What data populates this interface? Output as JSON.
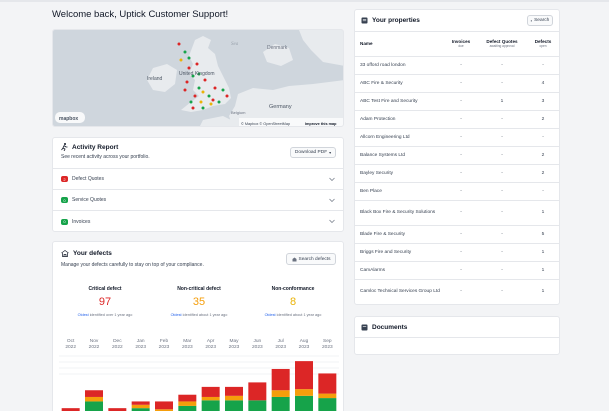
{
  "welcome": "Welcome back, Uptick Customer Support!",
  "map": {
    "labels": [
      "Sea",
      "Denmark",
      "Ireland",
      "United Kingdom",
      "Germany",
      "Belgium"
    ],
    "attribution": "© Mapbox © OpenStreetMap",
    "improve": "Improve this map",
    "logo": "mapbox",
    "zoom_in": "+",
    "zoom_out": "−"
  },
  "activity": {
    "title": "Activity Report",
    "subtitle": "See recent activity across your portfolio.",
    "download": "Download PDF",
    "items": [
      {
        "count": "2",
        "label": "Defect Quotes",
        "color": "#dc2626"
      },
      {
        "count": "0",
        "label": "Service Quotes",
        "color": "#16a34a"
      },
      {
        "count": "0",
        "label": "Invoices",
        "color": "#16a34a"
      }
    ]
  },
  "defects": {
    "title": "Your defects",
    "subtitle": "Manage your defects carefully to stay on top of your compliance.",
    "search": "Search defects",
    "stats": [
      {
        "label": "Critical defect",
        "value": "97",
        "color": "#dc2626",
        "link": "Oldest",
        "note": " identified over 1 year ago"
      },
      {
        "label": "Non-critical defect",
        "value": "35",
        "color": "#f59e0b",
        "link": "Oldest",
        "note": " identified about 1 year ago"
      },
      {
        "label": "Non-conformance",
        "value": "8",
        "color": "#eab308",
        "link": "Oldest",
        "note": " identified about 1 year ago"
      }
    ]
  },
  "chart_data": {
    "type": "bar",
    "categories": [
      [
        "Oct",
        "2022"
      ],
      [
        "Nov",
        "2022"
      ],
      [
        "Dec",
        "2022"
      ],
      [
        "Jan",
        "2023"
      ],
      [
        "Feb",
        "2023"
      ],
      [
        "Mar",
        "2023"
      ],
      [
        "Apr",
        "2023"
      ],
      [
        "May",
        "2023"
      ],
      [
        "Jun",
        "2023"
      ],
      [
        "Jul",
        "2023"
      ],
      [
        "Aug",
        "2023"
      ],
      [
        "Sep",
        "2023"
      ]
    ],
    "series": [
      {
        "color": "#16a34a",
        "values": [
          0,
          13,
          0,
          7,
          4,
          9,
          14,
          14,
          14,
          17,
          18,
          16
        ]
      },
      {
        "color": "#f59e0b",
        "values": [
          0,
          4,
          0,
          3,
          2,
          4,
          3,
          4,
          0,
          6,
          6,
          4
        ]
      },
      {
        "color": "#dc2626",
        "values": [
          7,
          6,
          7,
          3,
          7,
          6,
          9,
          8,
          16,
          19,
          25,
          18
        ]
      }
    ],
    "ylim": [
      0,
      50
    ],
    "grid": true
  },
  "properties": {
    "title": "Your properties",
    "search": "Search",
    "columns": [
      {
        "label": "Name",
        "sub": ""
      },
      {
        "label": "Invoices",
        "sub": "due"
      },
      {
        "label": "Defect Quotes",
        "sub": "awaiting approval"
      },
      {
        "label": "Defects",
        "sub": "open"
      }
    ],
    "rows": [
      [
        "33 offord road london",
        "-",
        "-",
        "-"
      ],
      [
        "ABC Fire & Security",
        "-",
        "-",
        "4"
      ],
      [
        "ABC Test Fire and Security",
        "-",
        "1",
        "3"
      ],
      [
        "Adam Protection",
        "-",
        "-",
        "2"
      ],
      [
        "Allcorn Engineering Ltd",
        "-",
        "-",
        "-"
      ],
      [
        "Balance Systems Ltd",
        "-",
        "-",
        "2"
      ],
      [
        "Bayley Security",
        "-",
        "-",
        "2"
      ],
      [
        "Ben Place",
        "-",
        "-",
        "-"
      ],
      [
        "Black Box Fire & Security Solutions",
        "-",
        "-",
        "1"
      ],
      [
        "Blade Fire & Security",
        "-",
        "-",
        "5"
      ],
      [
        "Briggs Fire and Security",
        "-",
        "-",
        "1"
      ],
      [
        "CamAlarms",
        "-",
        "-",
        "1"
      ],
      [
        "Camloc Technical Services Group Ltd",
        "-",
        "-",
        "1"
      ]
    ]
  },
  "documents": {
    "title": "Documents"
  }
}
